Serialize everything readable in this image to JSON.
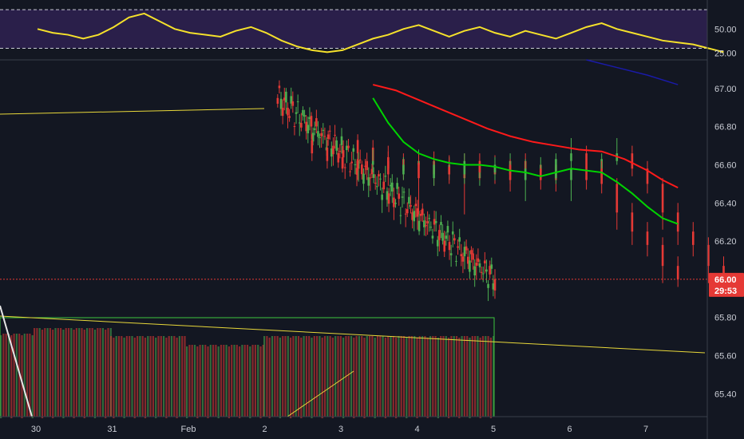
{
  "chart_data": {
    "type": "candlestick",
    "main": {
      "y_ticks": [
        "67.00",
        "66.80",
        "66.60",
        "66.40",
        "66.20",
        "66.00",
        "65.80",
        "65.60",
        "65.40"
      ],
      "ylim": [
        65.28,
        67.15
      ],
      "last_price": "66.00",
      "last_price_value": 66.0,
      "countdown": "29:53",
      "candles": [
        [
          0.2,
          66.73,
          66.66,
          66.62,
          66.76
        ],
        [
          0.4,
          66.69,
          66.62,
          66.58,
          66.73
        ],
        [
          0.6,
          66.64,
          66.58,
          66.56,
          66.7
        ],
        [
          0.8,
          66.63,
          66.57,
          66.52,
          66.66
        ],
        [
          1.0,
          66.6,
          66.62,
          66.56,
          66.68
        ],
        [
          1.2,
          66.62,
          66.55,
          66.49,
          66.67
        ],
        [
          1.4,
          66.55,
          66.6,
          66.52,
          66.64
        ],
        [
          1.6,
          66.61,
          66.53,
          66.34,
          66.66
        ],
        [
          1.8,
          66.53,
          66.6,
          66.49,
          66.62
        ],
        [
          2.0,
          66.59,
          66.55,
          66.5,
          66.65
        ],
        [
          2.2,
          66.55,
          66.62,
          66.5,
          66.66
        ],
        [
          2.4,
          66.62,
          66.56,
          66.52,
          66.66
        ],
        [
          2.6,
          66.56,
          66.6,
          66.52,
          66.64
        ],
        [
          2.8,
          66.6,
          66.52,
          66.46,
          66.63
        ],
        [
          3.0,
          66.52,
          66.58,
          66.41,
          66.63
        ],
        [
          3.2,
          66.58,
          66.52,
          66.47,
          66.6
        ],
        [
          3.4,
          66.53,
          66.63,
          66.5,
          66.66
        ],
        [
          3.6,
          66.62,
          66.66,
          66.6,
          66.74
        ],
        [
          3.8,
          66.66,
          66.58,
          66.54,
          66.7
        ],
        [
          4.0,
          66.58,
          66.5,
          66.45,
          66.62
        ],
        [
          4.2,
          66.5,
          66.35,
          66.26,
          66.53
        ],
        [
          4.4,
          66.35,
          66.25,
          66.18,
          66.4
        ],
        [
          4.6,
          66.25,
          66.18,
          66.12,
          66.3
        ],
        [
          4.8,
          66.18,
          66.07,
          65.98,
          66.22
        ],
        [
          5.0,
          66.07,
          66.0,
          65.96,
          66.12
        ]
      ],
      "ema_green": [
        [
          1.0,
          66.95
        ],
        [
          1.2,
          66.82
        ],
        [
          1.4,
          66.72
        ],
        [
          1.6,
          66.66
        ],
        [
          1.8,
          66.63
        ],
        [
          2.0,
          66.61
        ],
        [
          2.2,
          66.6
        ],
        [
          2.4,
          66.6
        ],
        [
          2.6,
          66.59
        ],
        [
          2.8,
          66.57
        ],
        [
          3.0,
          66.56
        ],
        [
          3.2,
          66.54
        ],
        [
          3.4,
          66.56
        ],
        [
          3.6,
          66.58
        ],
        [
          3.8,
          66.57
        ],
        [
          4.0,
          66.56
        ],
        [
          4.2,
          66.51
        ],
        [
          4.4,
          66.45
        ],
        [
          4.6,
          66.38
        ],
        [
          4.8,
          66.32
        ],
        [
          5.0,
          66.29
        ]
      ],
      "ema_red": [
        [
          1.0,
          67.02
        ],
        [
          1.3,
          66.99
        ],
        [
          1.6,
          66.94
        ],
        [
          1.9,
          66.89
        ],
        [
          2.2,
          66.84
        ],
        [
          2.5,
          66.79
        ],
        [
          2.8,
          66.75
        ],
        [
          3.1,
          66.72
        ],
        [
          3.4,
          66.7
        ],
        [
          3.7,
          66.68
        ],
        [
          4.0,
          66.67
        ],
        [
          4.3,
          66.63
        ],
        [
          4.6,
          66.57
        ],
        [
          4.8,
          66.52
        ],
        [
          5.0,
          66.48
        ]
      ],
      "ema_blue": [
        [
          3.8,
          67.15
        ],
        [
          4.2,
          67.11
        ],
        [
          4.6,
          67.07
        ],
        [
          5.0,
          67.02
        ]
      ]
    },
    "rsi": {
      "y_ticks": [
        "50.00",
        "25.00"
      ],
      "ylim": [
        18,
        80
      ],
      "upper_band": 70,
      "lower_band": 30,
      "values": [
        [
          -4.0,
          50
        ],
        [
          -3.8,
          46
        ],
        [
          -3.6,
          44
        ],
        [
          -3.4,
          40
        ],
        [
          -3.2,
          44
        ],
        [
          -3.0,
          52
        ],
        [
          -2.8,
          62
        ],
        [
          -2.6,
          66
        ],
        [
          -2.4,
          58
        ],
        [
          -2.2,
          50
        ],
        [
          -2.0,
          46
        ],
        [
          -1.8,
          44
        ],
        [
          -1.6,
          42
        ],
        [
          -1.4,
          48
        ],
        [
          -1.2,
          52
        ],
        [
          -1.0,
          46
        ],
        [
          -0.8,
          38
        ],
        [
          -0.6,
          32
        ],
        [
          -0.4,
          28
        ],
        [
          -0.2,
          26
        ],
        [
          0.0,
          28
        ],
        [
          0.2,
          34
        ],
        [
          0.4,
          40
        ],
        [
          0.6,
          44
        ],
        [
          0.8,
          50
        ],
        [
          1.0,
          54
        ],
        [
          1.2,
          48
        ],
        [
          1.4,
          42
        ],
        [
          1.6,
          48
        ],
        [
          1.8,
          52
        ],
        [
          2.0,
          46
        ],
        [
          2.2,
          42
        ],
        [
          2.4,
          48
        ],
        [
          2.6,
          44
        ],
        [
          2.8,
          40
        ],
        [
          3.0,
          46
        ],
        [
          3.2,
          52
        ],
        [
          3.4,
          56
        ],
        [
          3.6,
          50
        ],
        [
          3.8,
          46
        ],
        [
          4.0,
          42
        ],
        [
          4.2,
          38
        ],
        [
          4.4,
          36
        ],
        [
          4.6,
          34
        ],
        [
          4.8,
          30
        ],
        [
          5.0,
          26
        ]
      ]
    },
    "x_ticks": [
      {
        "label": "30",
        "x": -4
      },
      {
        "label": "31",
        "x": -3
      },
      {
        "label": "Feb",
        "x": -2
      },
      {
        "label": "2",
        "x": -1
      },
      {
        "label": "3",
        "x": 0
      },
      {
        "label": "4",
        "x": 1
      },
      {
        "label": "5",
        "x": 2
      },
      {
        "label": "6",
        "x": 3
      },
      {
        "label": "7",
        "x": 4
      }
    ],
    "colors": {
      "background": "#131722",
      "up": "#4caf50",
      "down": "#e53935",
      "ema_green": "#00d400",
      "ema_red": "#ff1a1a",
      "ema_blue": "#1a1aa8",
      "rsi_line": "#f5e12b",
      "rsi_band_fill": "#2a1f4a",
      "trend": "#e8d83a",
      "volume_box": "#3ec43e",
      "price_badge": "#e53935",
      "axis_text": "#c9ccd4"
    }
  }
}
